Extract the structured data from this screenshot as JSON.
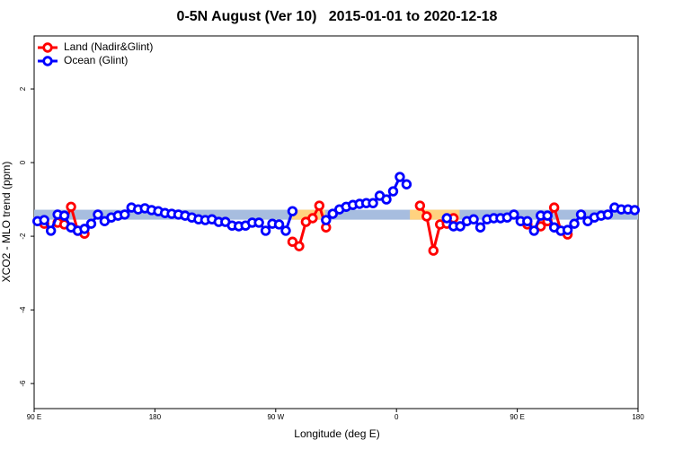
{
  "chart_data": {
    "type": "line",
    "title": "0-5N August (Ver 10)   2015-01-01 to 2020-12-18",
    "x_label": "Longitude (deg E)",
    "y_label": "XCO2 - MLO trend (ppm)",
    "xlim": [
      90,
      540
    ],
    "ylim": [
      -6.68,
      3.44
    ],
    "xticks": [
      {
        "value": 90,
        "label": "90 E"
      },
      180,
      {
        "value": 270,
        "label": "90 W"
      },
      {
        "value": 360,
        "label": "0"
      },
      {
        "value": 450,
        "label": "90 E"
      },
      {
        "value": 540,
        "label": "180"
      }
    ],
    "yticks": [
      -6,
      -4,
      -2,
      0,
      2
    ],
    "legend": "top-left",
    "bands": [
      {
        "color": "#a7bddf",
        "x": [
          90,
          540
        ],
        "y": [
          -1.28,
          -1.55
        ]
      },
      {
        "color": "#ffd27f",
        "x": [
          282,
          307
        ],
        "y": [
          -1.28,
          -1.55
        ]
      },
      {
        "color": "#ffd27f",
        "x": [
          370,
          407
        ],
        "y": [
          -1.28,
          -1.55
        ]
      }
    ],
    "x": [
      92.5,
      97.5,
      102.5,
      107.5,
      112.5,
      117.5,
      122.5,
      127.5,
      132.5,
      137.5,
      142.5,
      147.5,
      152.5,
      157.5,
      162.5,
      167.5,
      172.5,
      177.5,
      182.5,
      187.5,
      192.5,
      197.5,
      202.5,
      207.5,
      212.5,
      217.5,
      222.5,
      227.5,
      232.5,
      237.5,
      242.5,
      247.5,
      252.5,
      257.5,
      262.5,
      267.5,
      272.5,
      277.5,
      282.5,
      287.5,
      292.5,
      297.5,
      302.5,
      307.5,
      312.5,
      317.5,
      322.5,
      327.5,
      332.5,
      337.5,
      342.5,
      347.5,
      352.5,
      357.5,
      362.5,
      367.5,
      372.5,
      377.5,
      382.5,
      387.5,
      392.5,
      397.5,
      402.5,
      407.5,
      412.5,
      417.5,
      422.5,
      427.5,
      432.5,
      437.5,
      442.5,
      447.5,
      452.5,
      457.5,
      462.5,
      467.5,
      472.5,
      477.5,
      482.5,
      487.5,
      492.5,
      497.5,
      502.5,
      507.5,
      512.5,
      517.5,
      522.5,
      527.5,
      532.5,
      537.5
    ],
    "series": [
      {
        "name": "Land (Nadir&Glint)",
        "color": "#ff0000",
        "values": [
          null,
          -1.66,
          null,
          -1.63,
          -1.68,
          -1.2,
          -1.85,
          -1.93,
          null,
          null,
          null,
          null,
          null,
          null,
          null,
          null,
          null,
          null,
          null,
          null,
          null,
          null,
          null,
          null,
          null,
          null,
          null,
          null,
          null,
          null,
          null,
          null,
          null,
          null,
          null,
          null,
          null,
          null,
          -2.15,
          -2.27,
          -1.61,
          -1.51,
          -1.17,
          -1.76,
          null,
          null,
          null,
          null,
          null,
          null,
          null,
          null,
          null,
          null,
          null,
          null,
          null,
          -1.17,
          -1.46,
          -2.39,
          -1.68,
          -1.66,
          -1.51,
          null,
          null,
          null,
          null,
          null,
          null,
          null,
          null,
          null,
          null,
          -1.68,
          null,
          -1.73,
          -1.59,
          -1.22,
          -1.85,
          -1.95,
          null,
          null,
          null,
          null,
          null,
          null,
          null,
          null,
          null,
          null
        ]
      },
      {
        "name": "Ocean (Glint)",
        "color": "#0000ff",
        "values": [
          -1.59,
          -1.56,
          -1.85,
          -1.41,
          -1.44,
          -1.76,
          -1.85,
          -1.8,
          -1.66,
          -1.41,
          -1.59,
          -1.49,
          -1.44,
          -1.41,
          -1.22,
          -1.27,
          -1.24,
          -1.29,
          -1.32,
          -1.37,
          -1.39,
          -1.41,
          -1.44,
          -1.49,
          -1.54,
          -1.56,
          -1.54,
          -1.61,
          -1.61,
          -1.71,
          -1.73,
          -1.71,
          -1.63,
          -1.63,
          -1.85,
          -1.66,
          -1.68,
          -1.85,
          -1.32,
          null,
          null,
          null,
          null,
          -1.56,
          -1.39,
          -1.27,
          -1.2,
          -1.15,
          -1.12,
          -1.1,
          -1.1,
          -0.9,
          -1.0,
          -0.78,
          -0.39,
          -0.59,
          null,
          null,
          null,
          null,
          null,
          -1.51,
          -1.73,
          -1.73,
          -1.59,
          -1.54,
          -1.76,
          -1.54,
          -1.51,
          -1.51,
          -1.49,
          -1.41,
          -1.59,
          -1.59,
          -1.85,
          -1.44,
          -1.44,
          -1.76,
          -1.85,
          -1.83,
          -1.66,
          -1.41,
          -1.59,
          -1.49,
          -1.44,
          -1.41,
          -1.22,
          -1.27,
          -1.27,
          -1.29
        ]
      }
    ]
  }
}
